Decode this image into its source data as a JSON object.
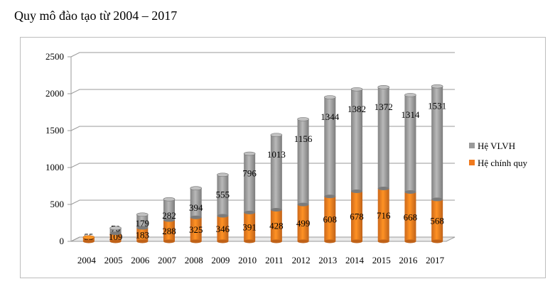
{
  "page": {
    "title": "Quy mô đào tạo từ 2004 – 2017"
  },
  "chart_data": {
    "type": "bar",
    "stacked": true,
    "three_d": true,
    "categories": [
      "2004",
      "2005",
      "2006",
      "2007",
      "2008",
      "2009",
      "2010",
      "2011",
      "2012",
      "2013",
      "2014",
      "2015",
      "2016",
      "2017"
    ],
    "series": [
      {
        "name": "Hệ chính quy",
        "color": "#f07a1e",
        "values": [
          55,
          109,
          183,
          288,
          325,
          346,
          391,
          428,
          499,
          608,
          678,
          716,
          668,
          568
        ]
      },
      {
        "name": "Hệ VLVH",
        "color": "#9a9a9a",
        "values": [
          0,
          70,
          179,
          282,
          394,
          555,
          796,
          1013,
          1156,
          1344,
          1382,
          1372,
          1314,
          1531
        ]
      }
    ],
    "data_labels": {
      "Hệ chính quy": [
        "55",
        "109",
        "183",
        "288",
        "325",
        "346",
        "391",
        "428",
        "499",
        "608",
        "678",
        "716",
        "668",
        "568"
      ],
      "Hệ VLVH": [
        "",
        "70",
        "179",
        "282",
        "394",
        "555",
        "796",
        "1013",
        "1156",
        "1344",
        "1382",
        "1372",
        "1314",
        "1531"
      ]
    },
    "y_ticks": [
      "0",
      "500",
      "1000",
      "1500",
      "2000",
      "2500"
    ],
    "ylim": [
      0,
      2500
    ],
    "grid": true,
    "legend_position": "right",
    "legend_order": [
      "Hệ VLVH",
      "Hệ chính quy"
    ]
  }
}
